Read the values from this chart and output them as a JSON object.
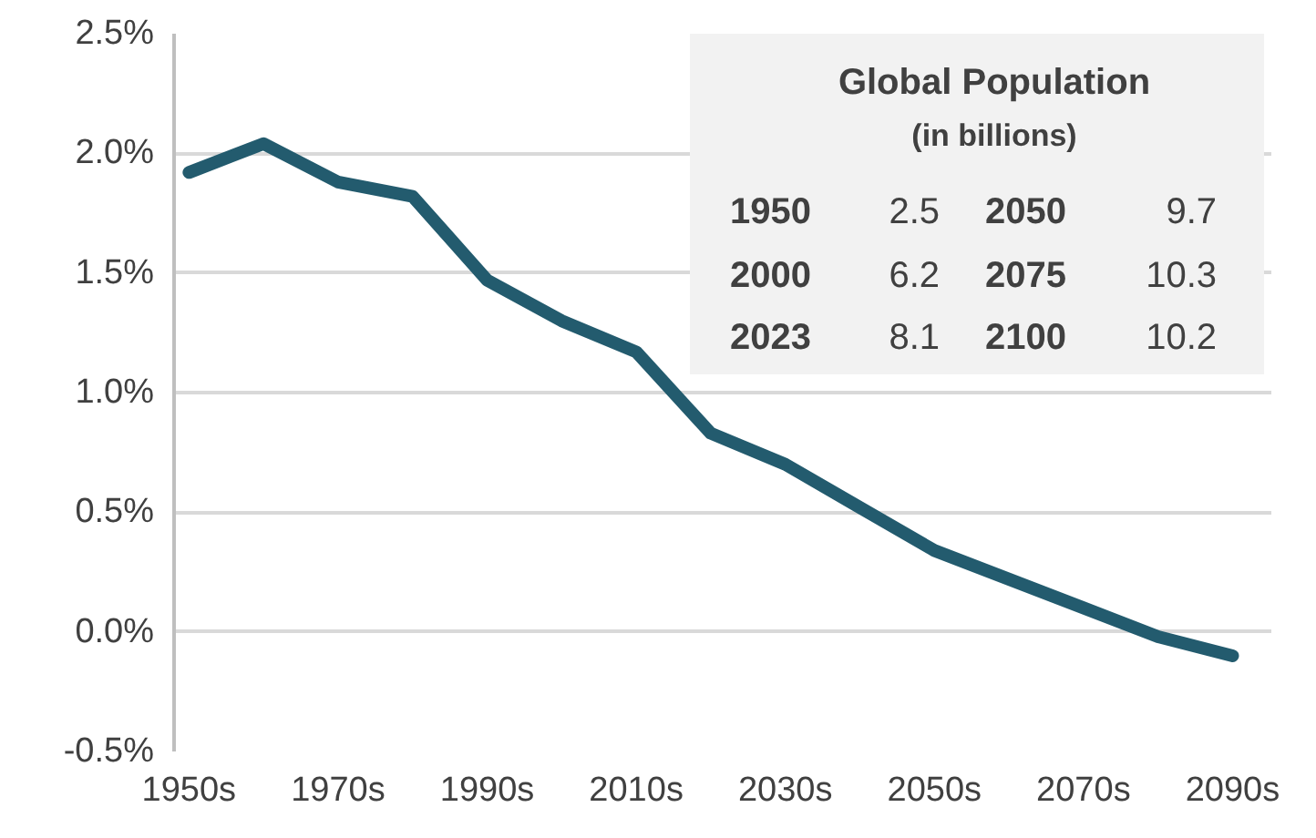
{
  "chart_data": {
    "type": "line",
    "title": "Global Population",
    "subtitle": "(in billions)",
    "annotations": [
      "1950",
      "2.5",
      "2050",
      "9.7",
      "2000",
      "6.2",
      "2075",
      "10.3",
      "2023",
      "8.1",
      "2100",
      "10.2"
    ],
    "categories": [
      "1950s",
      null,
      "1970s",
      null,
      "1990s",
      null,
      "2010s",
      null,
      "2030s",
      null,
      "2050s",
      null,
      "2070s",
      null,
      "2090s"
    ],
    "series": [
      {
        "color": "#235b6e",
        "values": [
          1.92,
          2.04,
          1.88,
          1.82,
          1.47,
          1.3,
          1.17,
          0.83,
          0.7,
          0.52,
          0.34,
          0.22,
          0.1,
          -0.02,
          -0.1
        ]
      }
    ],
    "ylim": [
      -0.5,
      2.5
    ],
    "yticks": [
      {
        "value": -0.5,
        "label": "-0.5%"
      },
      {
        "value": 0,
        "label": "0.0%"
      },
      {
        "value": 0.5,
        "label": "0.5%"
      },
      {
        "value": 1.0,
        "label": "1.0%"
      },
      {
        "value": 1.5,
        "label": "1.5%"
      },
      {
        "value": 2.0,
        "label": "2.0%"
      },
      {
        "value": 2.5,
        "label": "2.5%"
      }
    ],
    "grid": "y",
    "line_style": "solid"
  }
}
